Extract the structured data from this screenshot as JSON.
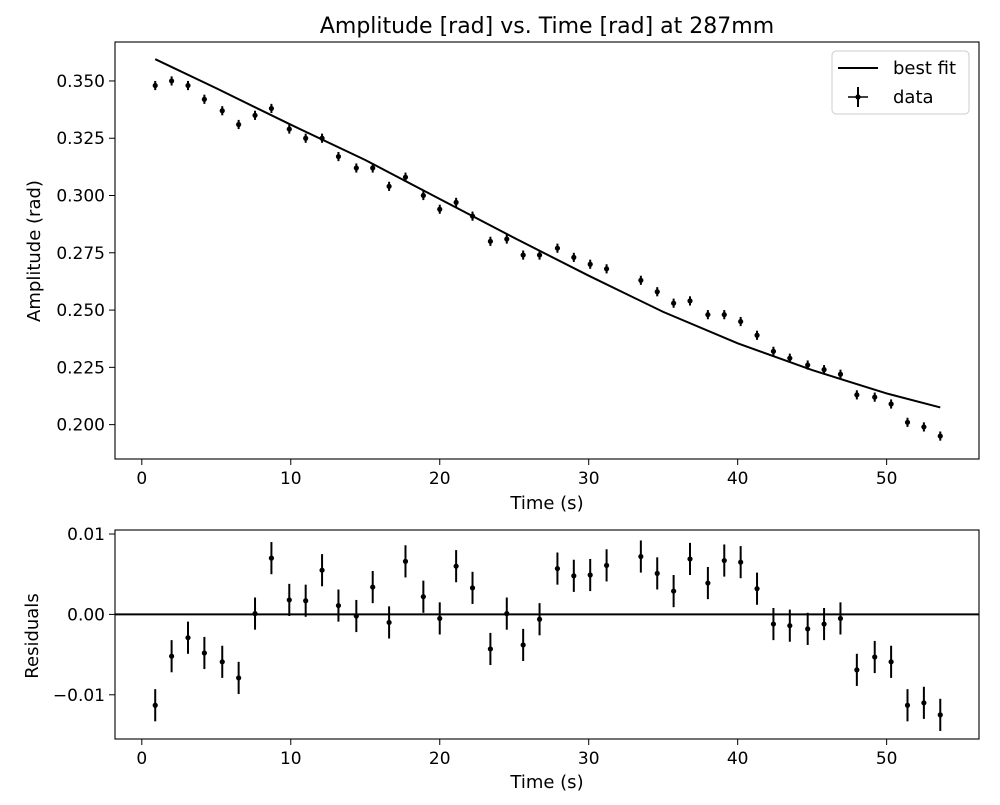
{
  "chart_data": [
    {
      "type": "scatter",
      "title": "Amplitude [rad] vs. Time [rad]  at 287mm",
      "xlabel": "Time (s)",
      "ylabel": "Amplitude (rad)",
      "xlim": [
        -1.8,
        56.2
      ],
      "ylim": [
        0.185,
        0.367
      ],
      "xticks": [
        0,
        10,
        20,
        30,
        40,
        50
      ],
      "xtick_labels": [
        "0",
        "10",
        "20",
        "30",
        "40",
        "50"
      ],
      "yticks": [
        0.2,
        0.225,
        0.25,
        0.275,
        0.3,
        0.325,
        0.35
      ],
      "ytick_labels": [
        "0.200",
        "0.225",
        "0.250",
        "0.275",
        "0.300",
        "0.325",
        "0.350"
      ],
      "legend": {
        "position": "top-right",
        "entries": [
          "best fit",
          "data"
        ]
      },
      "grid": false,
      "series": [
        {
          "name": "data",
          "kind": "errorbar",
          "color": "#000000",
          "x": [
            0.9,
            2.0,
            3.1,
            4.2,
            5.4,
            6.5,
            7.6,
            8.7,
            9.9,
            11.0,
            12.1,
            13.2,
            14.4,
            15.5,
            16.6,
            17.7,
            18.9,
            20.0,
            21.1,
            22.2,
            23.4,
            24.5,
            25.6,
            26.7,
            27.9,
            29.0,
            30.1,
            31.2,
            33.5,
            34.6,
            35.7,
            36.8,
            38.0,
            39.1,
            40.2,
            41.3,
            42.4,
            43.5,
            44.7,
            45.8,
            46.9,
            48.0,
            49.2,
            50.3,
            51.4,
            52.5,
            53.6
          ],
          "y": [
            0.348,
            0.35,
            0.348,
            0.342,
            0.337,
            0.331,
            0.335,
            0.338,
            0.329,
            0.325,
            0.325,
            0.317,
            0.312,
            0.312,
            0.304,
            0.308,
            0.3,
            0.294,
            0.297,
            0.291,
            0.28,
            0.281,
            0.274,
            0.274,
            0.277,
            0.273,
            0.27,
            0.268,
            0.263,
            0.258,
            0.253,
            0.254,
            0.248,
            0.248,
            0.245,
            0.239,
            0.232,
            0.229,
            0.226,
            0.224,
            0.222,
            0.213,
            0.212,
            0.209,
            0.201,
            0.199,
            0.195
          ],
          "yerr": 0.002
        },
        {
          "name": "best fit",
          "kind": "line",
          "color": "#000000",
          "x": [
            0.9,
            5.0,
            10.0,
            15.0,
            20.0,
            25.0,
            30.0,
            35.0,
            40.0,
            45.0,
            50.0,
            53.6
          ],
          "y": [
            0.3595,
            0.3468,
            0.3309,
            0.3155,
            0.2985,
            0.2815,
            0.265,
            0.2492,
            0.2355,
            0.2238,
            0.2136,
            0.2075
          ]
        }
      ]
    },
    {
      "type": "scatter",
      "title": "",
      "xlabel": "Time (s)",
      "ylabel": "Residuals",
      "xlim": [
        -1.8,
        56.2
      ],
      "ylim": [
        -0.0155,
        0.0105
      ],
      "xticks": [
        0,
        10,
        20,
        30,
        40,
        50
      ],
      "xtick_labels": [
        "0",
        "10",
        "20",
        "30",
        "40",
        "50"
      ],
      "yticks": [
        -0.01,
        0.0,
        0.01
      ],
      "ytick_labels": [
        "−0.01",
        "0.00",
        "0.01"
      ],
      "grid": false,
      "zero_line": 0.0,
      "series": [
        {
          "name": "residuals",
          "kind": "errorbar",
          "color": "#000000",
          "x": [
            0.9,
            2.0,
            3.1,
            4.2,
            5.4,
            6.5,
            7.6,
            8.7,
            9.9,
            11.0,
            12.1,
            13.2,
            14.4,
            15.5,
            16.6,
            17.7,
            18.9,
            20.0,
            21.1,
            22.2,
            23.4,
            24.5,
            25.6,
            26.7,
            27.9,
            29.0,
            30.1,
            31.2,
            33.5,
            34.6,
            35.7,
            36.8,
            38.0,
            39.1,
            40.2,
            41.3,
            42.4,
            43.5,
            44.7,
            45.8,
            46.9,
            48.0,
            49.2,
            50.3,
            51.4,
            52.5,
            53.6
          ],
          "y": [
            -0.0113,
            -0.0052,
            -0.0029,
            -0.0048,
            -0.0059,
            -0.0079,
            0.0001,
            0.007,
            0.0018,
            0.0017,
            0.0055,
            0.0011,
            -0.0002,
            0.0034,
            -0.001,
            0.0066,
            0.0022,
            -0.0005,
            0.006,
            0.0033,
            -0.0043,
            0.0001,
            -0.0038,
            -0.0006,
            0.0057,
            0.0048,
            0.0049,
            0.0061,
            0.0072,
            0.0051,
            0.0029,
            0.0069,
            0.0039,
            0.0067,
            0.0065,
            0.0032,
            -0.0012,
            -0.0014,
            -0.0018,
            -0.0012,
            -0.0005,
            -0.0069,
            -0.0053,
            -0.0059,
            -0.0113,
            -0.011,
            -0.0125
          ],
          "yerr": 0.002
        }
      ]
    }
  ]
}
